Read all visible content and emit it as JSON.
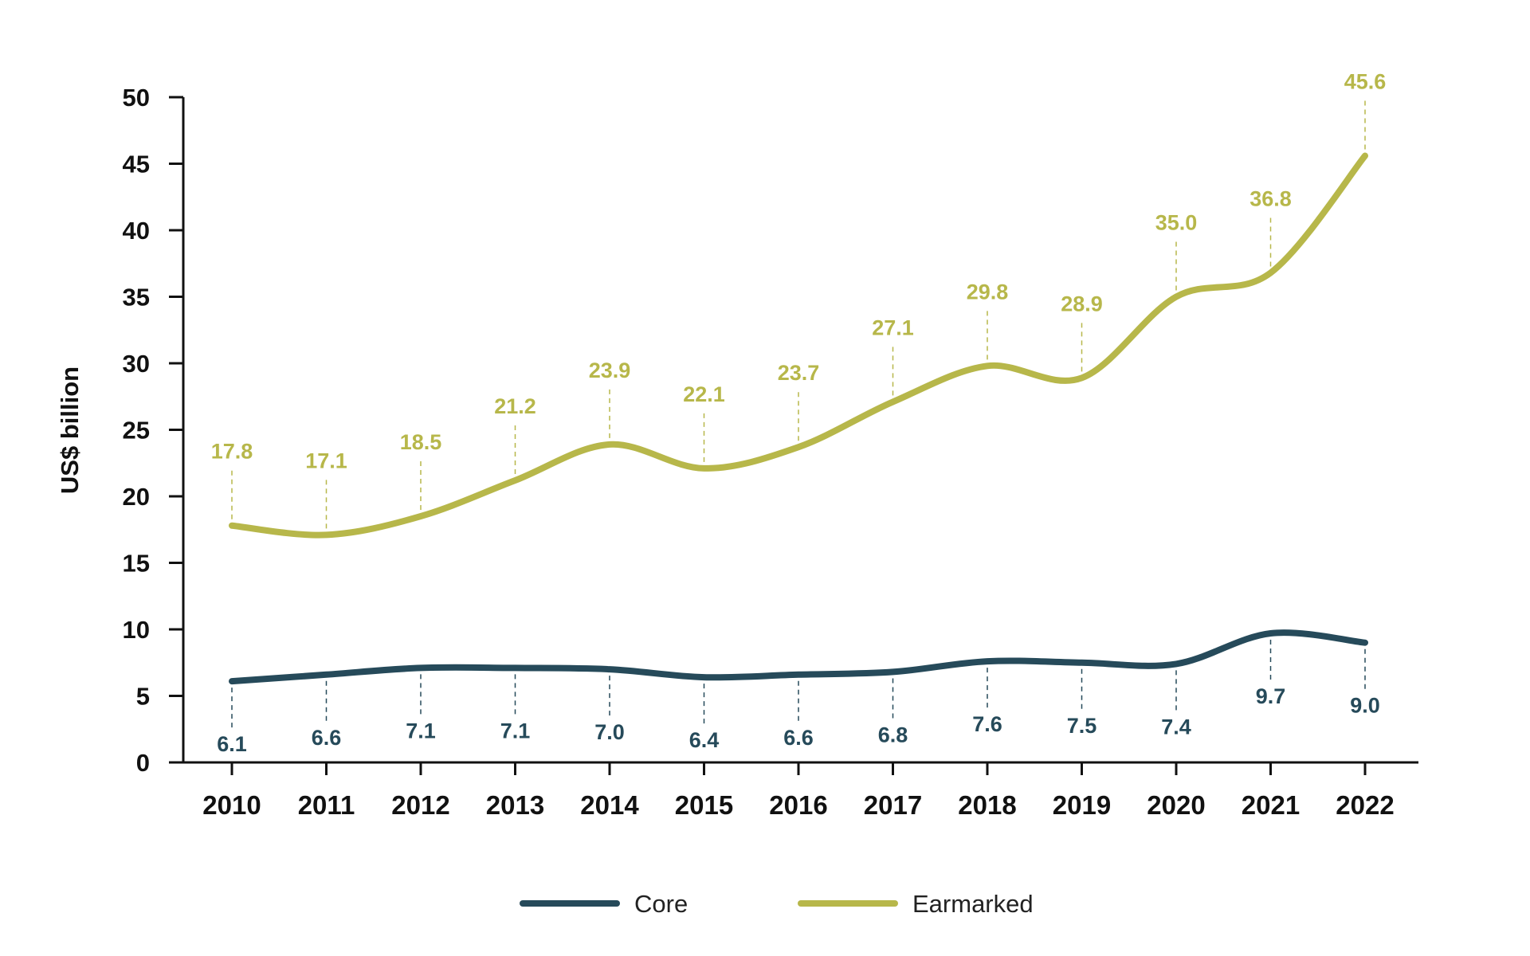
{
  "chart_data": {
    "type": "line",
    "title": "",
    "xlabel": "",
    "ylabel": "US$ billion",
    "ylim": [
      0,
      50
    ],
    "yticks": [
      0,
      5,
      10,
      15,
      20,
      25,
      30,
      35,
      40,
      45,
      50
    ],
    "grid": false,
    "legend_position": "bottom-center",
    "categories": [
      "2010",
      "2011",
      "2012",
      "2013",
      "2014",
      "2015",
      "2016",
      "2017",
      "2018",
      "2019",
      "2020",
      "2021",
      "2022"
    ],
    "series": [
      {
        "name": "Core",
        "color": "#264a5a",
        "label_position": "below",
        "values": [
          6.1,
          6.6,
          7.1,
          7.1,
          7.0,
          6.4,
          6.6,
          6.8,
          7.6,
          7.5,
          7.4,
          9.7,
          9.0
        ],
        "labels": [
          "6.1",
          "6.6",
          "7.1",
          "7.1",
          "7.0",
          "6.4",
          "6.6",
          "6.8",
          "7.6",
          "7.5",
          "7.4",
          "9.7",
          "9.0"
        ]
      },
      {
        "name": "Earmarked",
        "color": "#b7b74a",
        "label_position": "above",
        "values": [
          17.8,
          17.1,
          18.5,
          21.2,
          23.9,
          22.1,
          23.7,
          27.1,
          29.8,
          28.9,
          35.0,
          36.8,
          45.6
        ],
        "labels": [
          "17.8",
          "17.1",
          "18.5",
          "21.2",
          "23.9",
          "22.1",
          "23.7",
          "27.1",
          "29.8",
          "28.9",
          "35.0",
          "36.8",
          "45.6"
        ]
      }
    ]
  }
}
